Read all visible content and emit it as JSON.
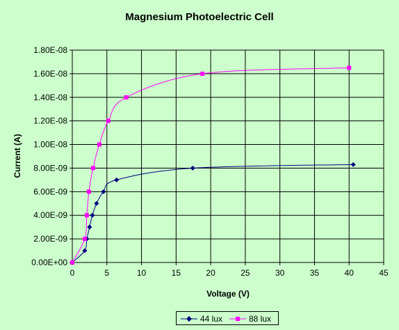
{
  "chart_data": {
    "type": "scatter",
    "title": "Magnesium Photoelectric Cell",
    "xlabel": "Voltage (V)",
    "ylabel": "Current (A)",
    "xlim": [
      0,
      45
    ],
    "ylim": [
      0,
      1.8e-08
    ],
    "x_ticks": [
      0,
      5,
      10,
      15,
      20,
      25,
      30,
      35,
      40,
      45
    ],
    "x_tick_labels": [
      "0",
      "5",
      "10",
      "15",
      "20",
      "25",
      "30",
      "35",
      "40",
      "45"
    ],
    "y_ticks": [
      0,
      2e-09,
      4e-09,
      6e-09,
      8e-09,
      1e-08,
      1.2e-08,
      1.4e-08,
      1.6e-08,
      1.8e-08
    ],
    "y_tick_labels": [
      "0.00E+00",
      "2.00E-09",
      "4.00E-09",
      "6.00E-09",
      "8.00E-09",
      "1.00E-08",
      "1.20E-08",
      "1.40E-08",
      "1.60E-08",
      "1.80E-08"
    ],
    "grid": true,
    "legend_position": "bottom",
    "series": [
      {
        "name": "44 lux",
        "color": "#000080",
        "marker": "diamond",
        "x": [
          0,
          1.8,
          2.1,
          2.5,
          2.9,
          3.5,
          4.5,
          6.4,
          17.4,
          40.6
        ],
        "y": [
          0,
          1e-09,
          2e-09,
          3e-09,
          4e-09,
          5e-09,
          6e-09,
          7e-09,
          8e-09,
          8.3e-09
        ]
      },
      {
        "name": "88 lux",
        "color": "#ff00ff",
        "marker": "square",
        "x": [
          0,
          1.8,
          2.1,
          2.4,
          3.0,
          3.9,
          5.2,
          7.8,
          18.8,
          40
        ],
        "y": [
          0,
          2e-09,
          4e-09,
          6e-09,
          8e-09,
          1e-08,
          1.2e-08,
          1.4e-08,
          1.6e-08,
          1.65e-08
        ]
      }
    ]
  }
}
